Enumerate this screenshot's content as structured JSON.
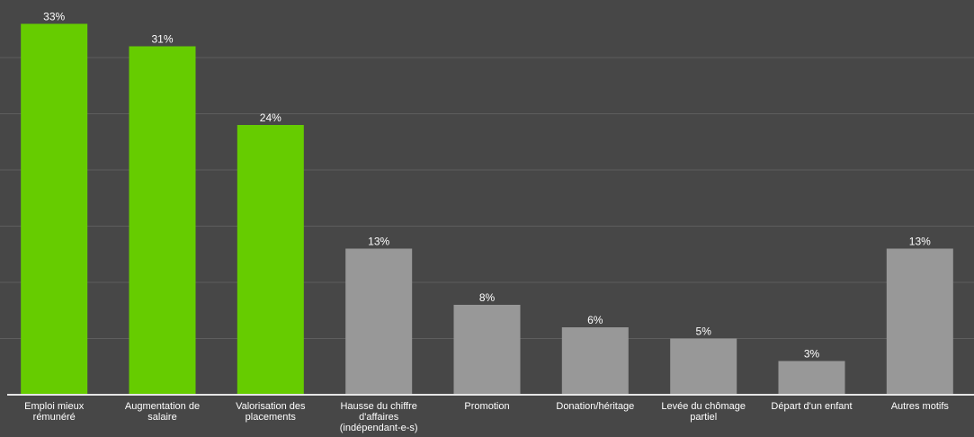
{
  "chart_data": {
    "type": "bar",
    "categories": [
      [
        "Emploi mieux",
        "rémunéré"
      ],
      [
        "Augmentation de",
        "salaire"
      ],
      [
        "Valorisation des",
        "placements"
      ],
      [
        "Hausse du chiffre",
        "d'affaires",
        "(indépendant-e-s)"
      ],
      [
        "Promotion"
      ],
      [
        "Donation/héritage"
      ],
      [
        "Levée du chômage",
        "partiel"
      ],
      [
        "Départ d'un enfant"
      ],
      [
        "Autres motifs"
      ]
    ],
    "values": [
      33,
      31,
      24,
      13,
      8,
      6,
      5,
      3,
      13
    ],
    "value_labels": [
      "33%",
      "31%",
      "24%",
      "13%",
      "8%",
      "6%",
      "5%",
      "3%",
      "13%"
    ],
    "highlight": [
      true,
      true,
      true,
      false,
      false,
      false,
      false,
      false,
      false
    ],
    "ylim": [
      0,
      35
    ],
    "grid": true,
    "unit": "%",
    "colors": {
      "background": "#474747",
      "highlight_bar": "#66cc00",
      "other_bar": "#989898",
      "grid": "#5e5e5e",
      "axis": "#e6e6e6",
      "text": "#ffffff"
    }
  }
}
